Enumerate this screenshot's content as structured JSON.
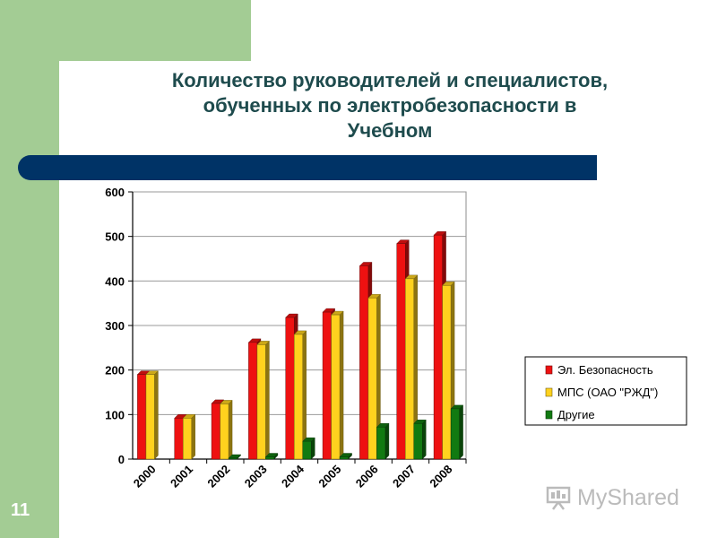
{
  "slide": {
    "title_lines": [
      "Количество  руководителей и специалистов,",
      "обученных по электробезопасности в",
      "Учебном"
    ],
    "number": "11",
    "watermark": "MyShared",
    "colors": {
      "green_band": "#a3cc94",
      "title_bar": "#003366",
      "title_text": "#1e4b4d"
    }
  },
  "chart_data": {
    "type": "bar",
    "categories": [
      "2000",
      "2001",
      "2002",
      "2003",
      "2004",
      "2005",
      "2006",
      "2007",
      "2008"
    ],
    "series": [
      {
        "name": "Эл. Безопасность",
        "color": "#ee1111",
        "values": [
          190,
          92,
          125,
          262,
          318,
          330,
          434,
          484,
          503
        ]
      },
      {
        "name": "МПС (ОАО \"РЖД\")",
        "color": "#ffd21e",
        "values": [
          190,
          92,
          124,
          257,
          280,
          324,
          362,
          405,
          390
        ]
      },
      {
        "name": "Другие",
        "color": "#117a11",
        "values": [
          0,
          0,
          2,
          5,
          40,
          5,
          72,
          80,
          113
        ]
      }
    ],
    "ylim": [
      0,
      600
    ],
    "yticks": [
      0,
      100,
      200,
      300,
      400,
      500,
      600
    ],
    "grid": true,
    "style": "3d",
    "legend_position": "right"
  }
}
